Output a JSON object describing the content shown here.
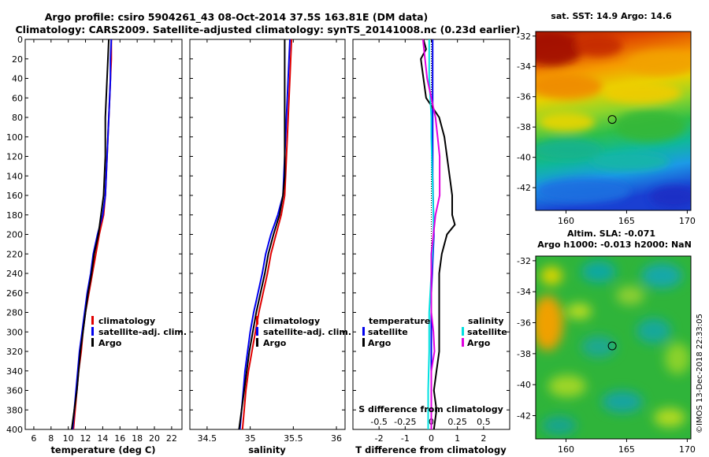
{
  "header": {
    "line1": "Argo profile: csiro 5904261_43 08-Oct-2014 37.5S 163.81E (DM data)",
    "line2": "Climatology: CARS2009. Satellite-adjusted climatology: synTS_20141008.nc (0.23d earlier)"
  },
  "depth_axis": {
    "ticks": [
      0,
      20,
      40,
      60,
      80,
      100,
      120,
      140,
      160,
      180,
      200,
      220,
      240,
      260,
      280,
      300,
      320,
      340,
      360,
      380,
      400
    ]
  },
  "colors": {
    "climatology": "#e00000",
    "satellite": "#0000ee",
    "argo": "#000000",
    "sal_satellite": "#00e0e0",
    "sal_argo": "#e000e0",
    "zero_line": "#000000"
  },
  "chart_data": [
    {
      "type": "line",
      "xlabel": "temperature (deg C)",
      "ylabel": "depth",
      "xlim": [
        5,
        23.2
      ],
      "ylim": [
        400,
        0
      ],
      "xticks": [
        6,
        8,
        10,
        12,
        14,
        16,
        18,
        20,
        22
      ],
      "legend": [
        "climatology",
        "satellite-adj. clim.",
        "Argo"
      ],
      "series": [
        {
          "name": "climatology",
          "depth": [
            0,
            20,
            40,
            60,
            80,
            100,
            120,
            140,
            160,
            180,
            200,
            220,
            240,
            260,
            280,
            300,
            320,
            340,
            360,
            380,
            400
          ],
          "values": [
            15.0,
            15.0,
            14.9,
            14.8,
            14.7,
            14.6,
            14.5,
            14.4,
            14.3,
            14.1,
            13.6,
            13.2,
            12.8,
            12.4,
            12.0,
            11.7,
            11.5,
            11.2,
            11.0,
            10.8,
            10.6
          ]
        },
        {
          "name": "satellite-adj. clim.",
          "depth": [
            0,
            20,
            40,
            60,
            80,
            100,
            120,
            140,
            160,
            180,
            200,
            220,
            240,
            260,
            280,
            300,
            320,
            340,
            360,
            380,
            400
          ],
          "values": [
            15.0,
            14.9,
            14.9,
            14.8,
            14.7,
            14.6,
            14.5,
            14.4,
            14.3,
            14.0,
            13.4,
            12.9,
            12.6,
            12.2,
            11.9,
            11.6,
            11.3,
            11.1,
            10.9,
            10.7,
            10.5
          ]
        },
        {
          "name": "Argo",
          "depth": [
            0,
            20,
            40,
            60,
            80,
            100,
            120,
            140,
            160,
            180,
            200,
            220,
            240,
            260,
            280,
            300,
            320,
            340,
            360,
            380,
            400
          ],
          "values": [
            14.7,
            14.6,
            14.5,
            14.4,
            14.3,
            14.3,
            14.3,
            14.2,
            14.1,
            13.8,
            13.5,
            13.0,
            12.7,
            12.3,
            12.0,
            11.7,
            11.4,
            11.2,
            11.0,
            10.7,
            10.4
          ]
        }
      ]
    },
    {
      "type": "line",
      "xlabel": "salinity",
      "ylabel": "depth",
      "xlim": [
        34.3,
        36.1
      ],
      "ylim": [
        400,
        0
      ],
      "xticks": [
        34.5,
        35,
        35.5,
        36
      ],
      "xticklabels": [
        "34.5",
        "35",
        "35.5",
        "36"
      ],
      "legend": [
        "climatology",
        "satellite-adj. clim.",
        "Argo"
      ],
      "series": [
        {
          "name": "climatology",
          "depth": [
            0,
            20,
            40,
            60,
            80,
            100,
            120,
            140,
            160,
            180,
            200,
            220,
            240,
            260,
            280,
            300,
            320,
            340,
            360,
            380,
            400
          ],
          "values": [
            35.48,
            35.47,
            35.46,
            35.45,
            35.44,
            35.43,
            35.42,
            35.41,
            35.4,
            35.36,
            35.3,
            35.24,
            35.2,
            35.15,
            35.1,
            35.06,
            35.02,
            34.98,
            34.95,
            34.93,
            34.91
          ]
        },
        {
          "name": "satellite-adj. clim.",
          "depth": [
            0,
            20,
            40,
            60,
            80,
            100,
            120,
            140,
            160,
            180,
            200,
            220,
            240,
            260,
            280,
            300,
            320,
            340,
            360,
            380,
            400
          ],
          "values": [
            35.46,
            35.45,
            35.44,
            35.43,
            35.42,
            35.41,
            35.4,
            35.39,
            35.38,
            35.32,
            35.24,
            35.18,
            35.14,
            35.09,
            35.04,
            35.0,
            34.97,
            34.94,
            34.92,
            34.9,
            34.88
          ]
        },
        {
          "name": "Argo",
          "depth": [
            0,
            20,
            40,
            60,
            80,
            100,
            120,
            140,
            160,
            180,
            200,
            220,
            240,
            260,
            280,
            300,
            320,
            340,
            360,
            380,
            400
          ],
          "values": [
            35.4,
            35.4,
            35.4,
            35.4,
            35.4,
            35.4,
            35.4,
            35.4,
            35.38,
            35.34,
            35.27,
            35.21,
            35.17,
            35.12,
            35.07,
            35.03,
            34.99,
            34.96,
            34.93,
            34.9,
            34.87
          ]
        }
      ]
    },
    {
      "type": "line",
      "xlabel": "T difference from climatology",
      "ylabel": "depth",
      "title2": "S difference from climatology",
      "xlim": [
        -3,
        3
      ],
      "ylim": [
        400,
        0
      ],
      "xticks": [
        -2,
        -1,
        0,
        1,
        2
      ],
      "sticks_labels": [
        "-0.5",
        "-0.25",
        "0",
        "0.25",
        "0.5"
      ],
      "legend_left_title": "temperature",
      "legend_right_title": "salinity",
      "legend_left": [
        "satellite",
        "Argo"
      ],
      "legend_right": [
        "satellite",
        "Argo"
      ],
      "series": [
        {
          "name": "T satellite",
          "depth": [
            0,
            20,
            40,
            60,
            80,
            100,
            140,
            200,
            260,
            320,
            400
          ],
          "values": [
            0.05,
            0.05,
            0.05,
            0.05,
            0.05,
            0.05,
            0.05,
            0.1,
            0.0,
            0.0,
            0.0
          ]
        },
        {
          "name": "T Argo",
          "depth": [
            0,
            10,
            20,
            40,
            60,
            80,
            100,
            120,
            140,
            160,
            180,
            190,
            200,
            220,
            240,
            260,
            280,
            300,
            320,
            340,
            360,
            380,
            400
          ],
          "values": [
            -0.3,
            -0.2,
            -0.4,
            -0.3,
            -0.2,
            0.3,
            0.5,
            0.6,
            0.7,
            0.8,
            0.8,
            0.9,
            0.6,
            0.4,
            0.3,
            0.3,
            0.3,
            0.3,
            0.3,
            0.2,
            0.1,
            0.2,
            0.1
          ]
        },
        {
          "name": "S satellite",
          "depth": [
            0,
            20,
            40,
            80,
            100,
            140,
            180,
            200,
            240,
            280,
            320,
            360,
            400
          ],
          "values": [
            -0.02,
            -0.02,
            -0.02,
            0.0,
            0.0,
            0.01,
            0.02,
            0.02,
            0.0,
            -0.02,
            -0.02,
            -0.03,
            -0.03
          ]
        },
        {
          "name": "S Argo",
          "depth": [
            0,
            20,
            40,
            60,
            80,
            100,
            120,
            140,
            160,
            180,
            200,
            220,
            240,
            260,
            280,
            300,
            320,
            340,
            360,
            380,
            400
          ],
          "values": [
            -0.08,
            -0.06,
            -0.04,
            0.0,
            0.04,
            0.06,
            0.08,
            0.08,
            0.08,
            0.04,
            0.02,
            0.0,
            0.0,
            0.0,
            0.0,
            0.02,
            0.03,
            0.0,
            0.0,
            0.0,
            0.0
          ]
        }
      ]
    },
    {
      "type": "heatmap",
      "title": "sat. SST: 14.9  Argo: 14.6",
      "xlim": [
        157.5,
        170.3
      ],
      "ylim": [
        -43.5,
        -31.7
      ],
      "xticks": [
        160,
        165,
        170
      ],
      "yticks": [
        -32,
        -34,
        -36,
        -38,
        -40,
        -42
      ],
      "marker": {
        "lon": 163.81,
        "lat": -37.5
      }
    },
    {
      "type": "heatmap",
      "title": "Altim. SLA: -0.071",
      "subtitle": "Argo h1000: -0.013  h2000: NaN",
      "xlim": [
        157.5,
        170.3
      ],
      "ylim": [
        -43.5,
        -31.7
      ],
      "xticks": [
        160,
        165,
        170
      ],
      "yticks": [
        -32,
        -34,
        -36,
        -38,
        -40,
        -42
      ],
      "marker": {
        "lon": 163.81,
        "lat": -37.5
      }
    }
  ],
  "stamp": "©IMOS 13-Dec-2018 22:33:05"
}
